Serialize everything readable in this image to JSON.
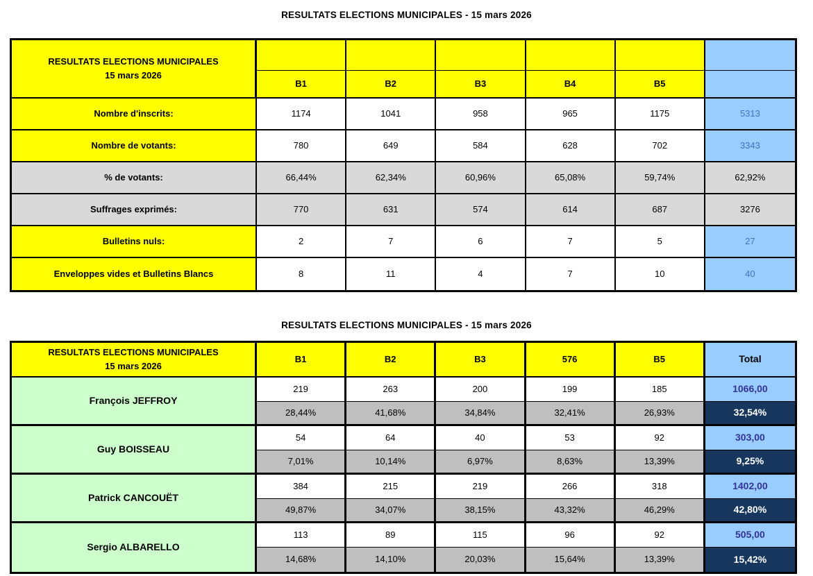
{
  "titles": {
    "section1": "RESULTATS ELECTIONS MUNICIPALES - 15 mars 2026",
    "section2": "RESULTATS ELECTIONS MUNICIPALES - 15 mars 2026"
  },
  "table1": {
    "corner_title_line1": "RESULTATS ELECTIONS MUNICIPALES",
    "corner_title_line2": "15 mars 2026",
    "columns": [
      "B1",
      "B2",
      "B3",
      "B4",
      "B5"
    ],
    "rows": [
      {
        "label": "Nombre d'inscrits:",
        "values": [
          "1174",
          "1041",
          "958",
          "965",
          "1175"
        ],
        "total": "5313"
      },
      {
        "label": "Nombre de votants:",
        "values": [
          "780",
          "649",
          "584",
          "628",
          "702"
        ],
        "total": "3343"
      },
      {
        "label": "% de votants:",
        "values": [
          "66,44%",
          "62,34%",
          "60,96%",
          "65,08%",
          "59,74%"
        ],
        "total": "62,92%"
      },
      {
        "label": "Suffrages exprimés:",
        "values": [
          "770",
          "631",
          "574",
          "614",
          "687"
        ],
        "total": "3276"
      },
      {
        "label": "Bulletins nuls:",
        "values": [
          "2",
          "7",
          "6",
          "7",
          "5"
        ],
        "total": "27"
      },
      {
        "label": "Enveloppes vides et Bulletins Blancs",
        "values": [
          "8",
          "11",
          "4",
          "7",
          "10"
        ],
        "total": "40"
      }
    ]
  },
  "table2": {
    "corner_title_line1": "RESULTATS ELECTIONS MUNICIPALES",
    "corner_title_line2": "15 mars 2026",
    "columns": [
      "B1",
      "B2",
      "B3",
      "576",
      "B5"
    ],
    "total_header": "Total",
    "candidates": [
      {
        "name": "François JEFFROY",
        "votes": [
          "219",
          "263",
          "200",
          "199",
          "185"
        ],
        "votes_total": "1066,00",
        "percents": [
          "28,44%",
          "41,68%",
          "34,84%",
          "32,41%",
          "26,93%"
        ],
        "percent_total": "32,54%"
      },
      {
        "name": "Guy BOISSEAU",
        "votes": [
          "54",
          "64",
          "40",
          "53",
          "92"
        ],
        "votes_total": "303,00",
        "percents": [
          "7,01%",
          "10,14%",
          "6,97%",
          "8,63%",
          "13,39%"
        ],
        "percent_total": "9,25%"
      },
      {
        "name": "Patrick CANCOUËT",
        "votes": [
          "384",
          "215",
          "219",
          "266",
          "318"
        ],
        "votes_total": "1402,00",
        "percents": [
          "49,87%",
          "34,07%",
          "38,15%",
          "43,32%",
          "46,29%"
        ],
        "percent_total": "42,80%"
      },
      {
        "name": "Sergio ALBARELLO",
        "votes": [
          "113",
          "89",
          "115",
          "96",
          "92"
        ],
        "votes_total": "505,00",
        "percents": [
          "14,68%",
          "14,10%",
          "20,03%",
          "15,64%",
          "13,39%"
        ],
        "percent_total": "15,42%"
      }
    ]
  },
  "colors": {
    "yellow": "#FFFF00",
    "light_blue": "#99CCFF",
    "light_green": "#CCFFCC",
    "gray_light": "#D9D9D9",
    "gray_medium": "#BFBFBF",
    "navy": "#17375E",
    "blue_text": "#4472C4",
    "indigo_text": "#333399"
  }
}
